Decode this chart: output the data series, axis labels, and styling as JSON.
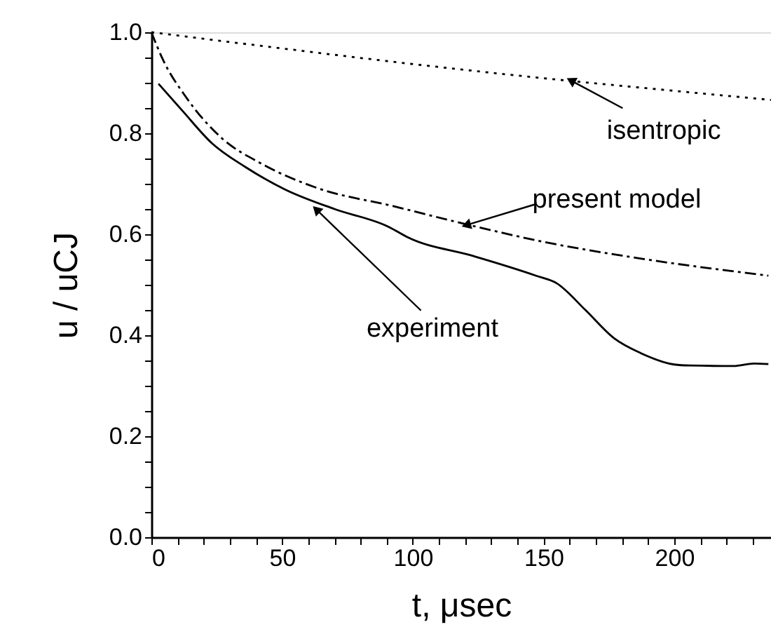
{
  "chart_data": {
    "type": "line",
    "xlabel": "t, μsec",
    "ylabel": "u / uCJ",
    "xlim": [
      0,
      237
    ],
    "ylim": [
      0,
      1.0
    ],
    "xticks": [
      0,
      {
        "value": 10,
        "label": null
      },
      {
        "value": 20,
        "label": null
      },
      {
        "value": 30,
        "label": null
      },
      {
        "value": 40,
        "label": null
      },
      50,
      {
        "value": 60,
        "label": null
      },
      {
        "value": 70,
        "label": null
      },
      {
        "value": 80,
        "label": null
      },
      {
        "value": 90,
        "label": null
      },
      100,
      {
        "value": 110,
        "label": null
      },
      {
        "value": 120,
        "label": null
      },
      {
        "value": 130,
        "label": null
      },
      {
        "value": 140,
        "label": null
      },
      150,
      {
        "value": 160,
        "label": null
      },
      {
        "value": 170,
        "label": null
      },
      {
        "value": 180,
        "label": null
      },
      {
        "value": 190,
        "label": null
      },
      200,
      {
        "value": 210,
        "label": null
      },
      {
        "value": 220,
        "label": null
      },
      {
        "value": 230,
        "label": null
      }
    ],
    "yticks": [
      {
        "value": 0,
        "label": "0.0"
      },
      {
        "value": 0.05,
        "label": null
      },
      {
        "value": 0.1,
        "label": null
      },
      {
        "value": 0.15,
        "label": null
      },
      {
        "value": 0.2,
        "label": "0.2"
      },
      {
        "value": 0.25,
        "label": null
      },
      {
        "value": 0.3,
        "label": null
      },
      {
        "value": 0.35,
        "label": null
      },
      {
        "value": 0.4,
        "label": "0.4"
      },
      {
        "value": 0.45,
        "label": null
      },
      {
        "value": 0.5,
        "label": null
      },
      {
        "value": 0.55,
        "label": null
      },
      {
        "value": 0.6,
        "label": "0.6"
      },
      {
        "value": 0.65,
        "label": null
      },
      {
        "value": 0.7,
        "label": null
      },
      {
        "value": 0.75,
        "label": null
      },
      {
        "value": 0.8,
        "label": "0.8"
      },
      {
        "value": 0.85,
        "label": null
      },
      {
        "value": 0.9,
        "label": null
      },
      {
        "value": 0.95,
        "label": null
      },
      {
        "value": 1.0,
        "label": "1.0"
      }
    ],
    "grid": false,
    "series": [
      {
        "color": "#000000",
        "line_style": "dotted",
        "x": [
          0,
          50,
          100,
          150,
          200,
          237
        ],
        "values": [
          1.0,
          0.968,
          0.937,
          0.909,
          0.884,
          0.866
        ]
      },
      {
        "color": "#000000",
        "line_style": "dashdot",
        "x": [
          0,
          4.3,
          13.6,
          27,
          42,
          62.6,
          93,
          121,
          149,
          187,
          236
        ],
        "values": [
          1.0,
          0.947,
          0.869,
          0.79,
          0.74,
          0.693,
          0.655,
          0.619,
          0.586,
          0.552,
          0.518
        ]
      },
      {
        "color": "#000000",
        "line_style": "solid",
        "x": [
          2.7,
          11.8,
          23,
          36,
          51,
          70,
          91,
          98,
          123,
          147,
          155,
          166,
          177,
          187,
          200,
          206,
          222.7,
          230.5,
          236
        ],
        "values": [
          0.898,
          0.845,
          0.781,
          0.733,
          0.689,
          0.65,
          0.614,
          0.594,
          0.557,
          0.518,
          0.503,
          0.45,
          0.394,
          0.365,
          0.342,
          0.34,
          0.339,
          0.344,
          0.343
        ]
      }
    ],
    "annotations": [
      {
        "text": "isentropic",
        "x": 161,
        "y": 0.903
      },
      {
        "text": "present model",
        "x": 121,
        "y": 0.619
      },
      {
        "text": "experiment",
        "x": 63.5,
        "y": 0.647
      }
    ]
  }
}
